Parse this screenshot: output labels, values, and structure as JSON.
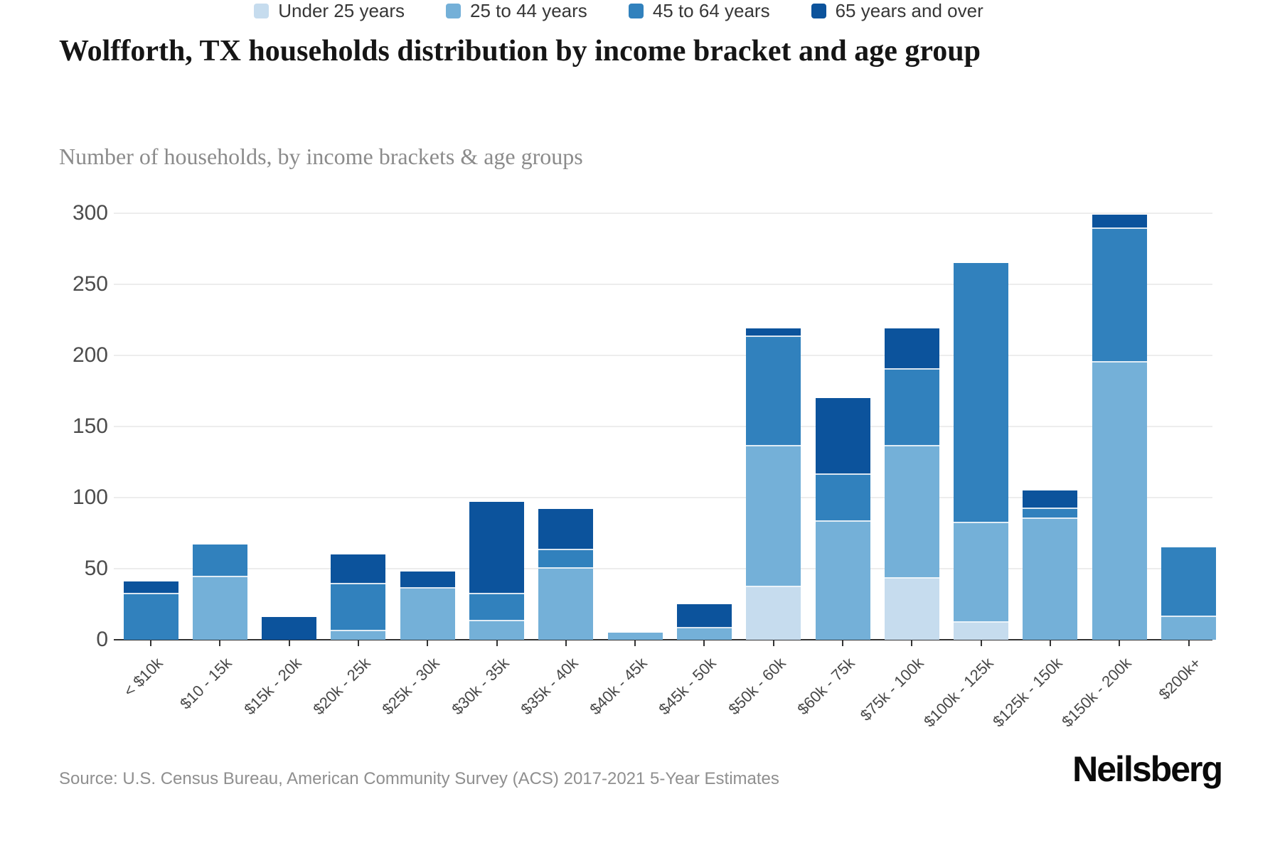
{
  "header": {
    "title": "Wolfforth, TX households distribution by income bracket and age group",
    "subtitle": "Number of households, by income brackets & age groups"
  },
  "chart_data": {
    "type": "bar",
    "stacked": true,
    "title": "Wolfforth, TX households distribution by income bracket and age group",
    "subtitle": "Number of households, by income brackets & age groups",
    "categories": [
      "< $10k",
      "$10 - 15k",
      "$15k - 20k",
      "$20k - 25k",
      "$25k - 30k",
      "$30k - 35k",
      "$35k - 40k",
      "$40k - 45k",
      "$45k - 50k",
      "$50k - 60k",
      "$60k - 75k",
      "$75k - 100k",
      "$100k - 125k",
      "$125k - 150k",
      "$150k - 200k",
      "$200k+"
    ],
    "series": [
      {
        "name": "Under 25 years",
        "color": "#c6dcee",
        "values": [
          0,
          0,
          0,
          0,
          0,
          0,
          0,
          0,
          0,
          37,
          0,
          43,
          12,
          0,
          0,
          0
        ]
      },
      {
        "name": "25 to 44 years",
        "color": "#74b0d8",
        "values": [
          0,
          44,
          0,
          6,
          36,
          13,
          50,
          5,
          8,
          99,
          83,
          93,
          70,
          85,
          195,
          16
        ]
      },
      {
        "name": "45 to 64 years",
        "color": "#3181bd",
        "values": [
          32,
          23,
          0,
          33,
          0,
          19,
          13,
          0,
          0,
          77,
          33,
          54,
          183,
          7,
          94,
          49
        ]
      },
      {
        "name": "65 years and over",
        "color": "#0c539c",
        "values": [
          9,
          0,
          16,
          21,
          12,
          65,
          29,
          0,
          17,
          6,
          54,
          29,
          0,
          13,
          10,
          0
        ]
      }
    ],
    "totals": [
      41,
      67,
      16,
      60,
      48,
      97,
      92,
      5,
      25,
      219,
      170,
      219,
      265,
      105,
      299,
      65
    ],
    "xlabel": "",
    "ylabel": "",
    "ylim": [
      0,
      300
    ],
    "yticks": [
      0,
      50,
      100,
      150,
      200,
      250,
      300
    ],
    "grid": true,
    "legend_position": "bottom"
  },
  "footer": {
    "source": "Source: U.S. Census Bureau, American Community Survey (ACS) 2017-2021 5-Year Estimates",
    "logo": "Neilsberg"
  }
}
